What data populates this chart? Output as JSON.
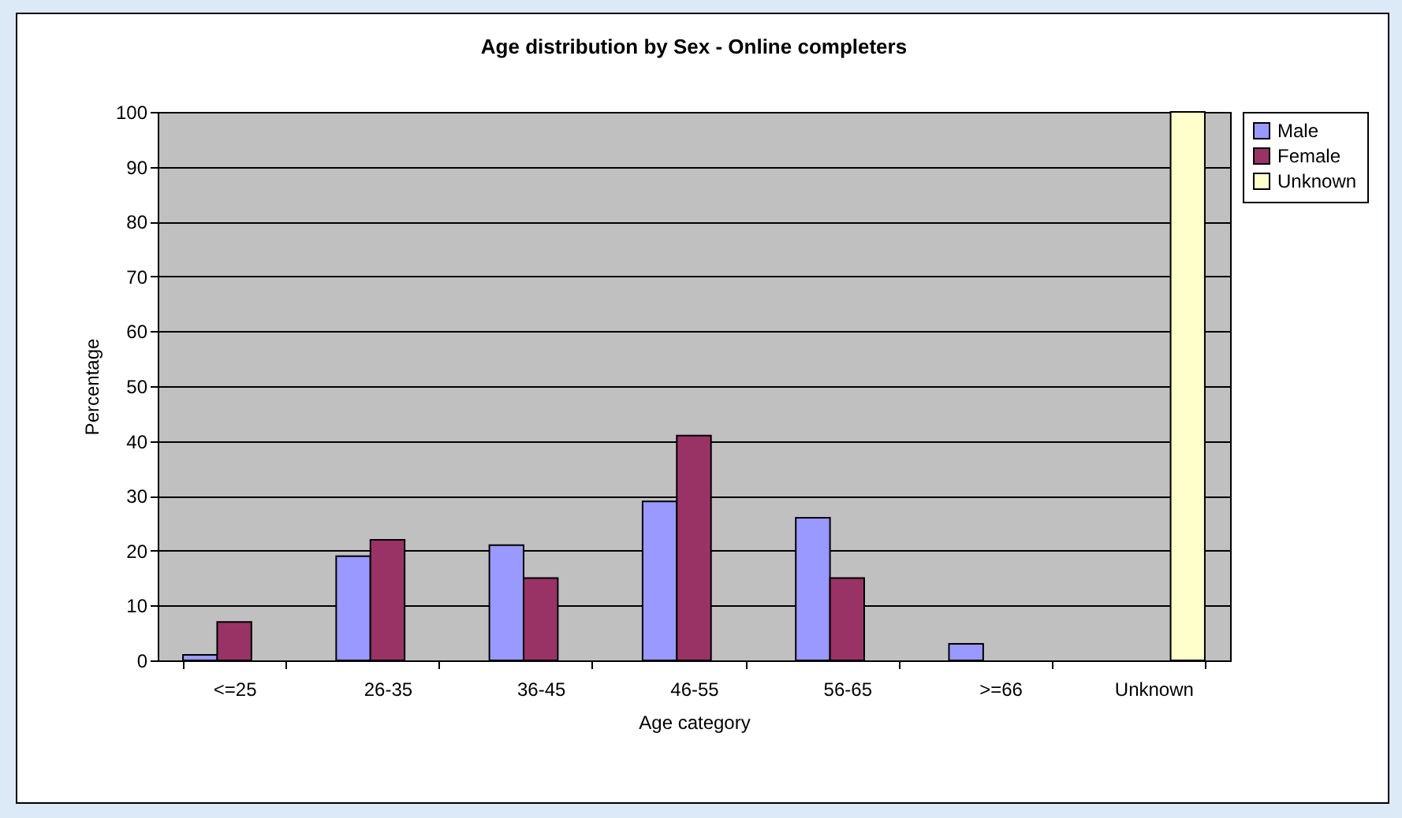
{
  "chart_data": {
    "type": "bar",
    "title": "Age distribution by Sex - Online completers",
    "xlabel": "Age category",
    "ylabel": "Percentage",
    "categories": [
      "<=25",
      "26-35",
      "36-45",
      "46-55",
      "56-65",
      ">=66",
      "Unknown"
    ],
    "series": [
      {
        "name": "Male",
        "color": "#9999ff",
        "values": [
          1,
          19,
          21,
          29,
          26,
          3,
          null
        ]
      },
      {
        "name": "Female",
        "color": "#993366",
        "values": [
          7,
          22,
          15,
          41,
          15,
          null,
          null
        ]
      },
      {
        "name": "Unknown",
        "color": "#ffffcc",
        "values": [
          null,
          null,
          null,
          null,
          null,
          null,
          100
        ]
      }
    ],
    "ylim": [
      0,
      100
    ],
    "yticks": [
      0,
      10,
      20,
      30,
      40,
      50,
      60,
      70,
      80,
      90,
      100
    ],
    "grid": "y",
    "legend": "right"
  }
}
